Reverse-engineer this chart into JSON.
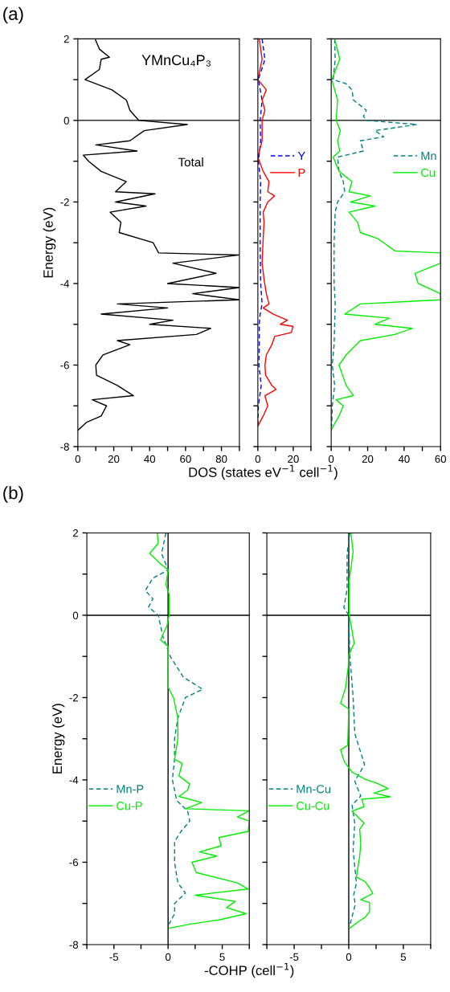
{
  "chart_data": [
    {
      "type": "line",
      "ylabel": "Energy (eV)",
      "xlim": [
        0,
        90
      ],
      "ylim": [
        -8,
        2
      ],
      "xticks": [
        0,
        {
          "value": 10,
          "label": null
        },
        20,
        {
          "value": 30,
          "label": null
        },
        40,
        {
          "value": 50,
          "label": null
        },
        60,
        {
          "value": 70,
          "label": null
        },
        80,
        {
          "value": 90,
          "label": null
        }
      ],
      "yticks": [
        -8,
        {
          "value": -7,
          "label": null
        },
        -6,
        {
          "value": -5,
          "label": null
        },
        -4,
        {
          "value": -3,
          "label": null
        },
        -2,
        {
          "value": -1,
          "label": null
        },
        0,
        {
          "value": 1,
          "label": null
        },
        2
      ],
      "annotations": [
        "(a)",
        "YMnCu₄P₃",
        "Total"
      ],
      "ref_lines": [
        {
          "axis": "y",
          "value": 0,
          "color": "#000000"
        }
      ],
      "series": [
        {
          "color": "#000000",
          "line_style": "solid",
          "x": [
            9.6,
            12,
            17.6,
            13,
            12,
            4,
            19,
            27,
            29,
            34,
            61,
            37,
            29,
            10,
            33,
            3,
            6,
            13,
            27,
            21,
            43,
            21,
            38,
            18,
            24,
            23,
            42,
            45,
            90,
            53,
            77,
            50,
            90,
            64,
            90,
            22,
            50,
            13,
            53,
            40,
            74,
            66,
            22,
            29,
            14,
            10,
            10.4,
            22,
            31,
            8,
            16,
            13,
            5,
            0
          ],
          "values": [
            2,
            1.75,
            1.55,
            1.5,
            1.25,
            1.0,
            0.75,
            0.5,
            0.25,
            0,
            -0.1,
            -0.25,
            -0.5,
            -0.6,
            -0.75,
            -0.85,
            -1.0,
            -1.25,
            -1.5,
            -1.75,
            -1.8,
            -2.0,
            -2.1,
            -2.25,
            -2.5,
            -2.75,
            -3.0,
            -3.25,
            -3.3,
            -3.5,
            -3.75,
            -4.0,
            -4.1,
            -4.25,
            -4.4,
            -4.5,
            -4.6,
            -4.75,
            -4.9,
            -5.0,
            -5.1,
            -5.25,
            -5.4,
            -5.5,
            -5.75,
            -6.0,
            -6.25,
            -6.5,
            -6.75,
            -6.85,
            -7.0,
            -7.25,
            -7.4,
            -7.6
          ]
        }
      ]
    },
    {
      "type": "line",
      "xlabel": "DOS (states eV$^{−1}$ cell$^{−1}$)",
      "xlim": [
        0,
        30
      ],
      "ylim": [
        -8,
        2
      ],
      "xticks": [
        0,
        {
          "value": 10,
          "label": null
        },
        20,
        {
          "value": 30,
          "label": null
        }
      ],
      "yticks": [
        -8,
        {
          "value": -7,
          "label": null
        },
        -6,
        {
          "value": -5,
          "label": null
        },
        -4,
        {
          "value": -3,
          "label": null
        },
        -2,
        {
          "value": -1,
          "label": null
        },
        0,
        {
          "value": 1,
          "label": null
        },
        2
      ],
      "tick_labels": "x",
      "legend": "right",
      "ref_lines": [
        {
          "axis": "y",
          "value": 0,
          "color": "#000000"
        }
      ],
      "series": [
        {
          "name": "Y",
          "color": "#0000ff",
          "line_style": "dashed",
          "x": [
            2.4,
            4,
            0.3,
            2.4,
            1.3,
            1.6,
            0.3,
            1.6,
            1.3,
            1.3,
            1.6,
            2.4,
            1.3,
            0.8,
            0.8,
            0.6,
            1.9,
            0.3,
            0
          ],
          "values": [
            2,
            1.5,
            1.0,
            0.5,
            0,
            -0.5,
            -1.0,
            -1.5,
            -2.0,
            -3.0,
            -4.0,
            -4.5,
            -4.75,
            -5.0,
            -5.5,
            -6.0,
            -6.5,
            -7.0,
            -7.5
          ]
        },
        {
          "name": "P",
          "color": "#ff0000",
          "line_style": "solid",
          "x": [
            0.8,
            2.4,
            0,
            4.8,
            2.4,
            4,
            2.4,
            2.4,
            0,
            3,
            6.3,
            5.6,
            9.5,
            5.6,
            3,
            3.5,
            2.9,
            2.4,
            3.5,
            4.8,
            6.3,
            3,
            8.7,
            16.7,
            12.7,
            19.8,
            19,
            9.5,
            7.9,
            4.8,
            4,
            4.4,
            7.9,
            10.3,
            4,
            5.6,
            3,
            0
          ],
          "values": [
            2,
            1.5,
            1.0,
            0.75,
            0.5,
            0.25,
            0,
            -0.5,
            -0.9,
            -1.25,
            -1.5,
            -1.75,
            -1.85,
            -2.0,
            -2.25,
            -2.5,
            -3.0,
            -3.5,
            -3.9,
            -4.25,
            -4.5,
            -4.6,
            -4.75,
            -4.9,
            -5.0,
            -5.05,
            -5.2,
            -5.3,
            -5.5,
            -5.75,
            -6.0,
            -6.25,
            -6.5,
            -6.6,
            -6.75,
            -7.0,
            -7.25,
            -7.5
          ]
        }
      ]
    },
    {
      "type": "line",
      "xlim": [
        0,
        60
      ],
      "ylim": [
        -8,
        2
      ],
      "xticks": [
        0,
        {
          "value": 10,
          "label": null
        },
        20,
        {
          "value": 30,
          "label": null
        },
        40,
        {
          "value": 50,
          "label": null
        },
        60
      ],
      "yticks": [
        -8,
        {
          "value": -7,
          "label": null
        },
        -6,
        {
          "value": -5,
          "label": null
        },
        -4,
        {
          "value": -3,
          "label": null
        },
        -2,
        {
          "value": -1,
          "label": null
        },
        0,
        {
          "value": 1,
          "label": null
        },
        2
      ],
      "tick_labels": "x",
      "legend": "right",
      "ref_lines": [
        {
          "axis": "y",
          "value": 0,
          "color": "#000000"
        }
      ],
      "series": [
        {
          "name": "Mn",
          "color": "#008080",
          "line_style": "dashed",
          "x": [
            1.9,
            2.2,
            1.1,
            8.2,
            11.4,
            12.2,
            19.3,
            17.7,
            19.3,
            47,
            24,
            28.8,
            16,
            17.7,
            3.5,
            4.3,
            6.6,
            7.4,
            3.5,
            2.2,
            1.6,
            1.6,
            2.2,
            1.9,
            1.6,
            0.6,
            1.9,
            0.6,
            0.3
          ],
          "values": [
            2,
            1.5,
            1.0,
            0.9,
            0.75,
            0.5,
            0.25,
            0.1,
            0,
            -0.1,
            -0.25,
            -0.4,
            -0.5,
            -0.75,
            -0.9,
            -1.25,
            -1.5,
            -1.75,
            -2.0,
            -2.25,
            -3.0,
            -4.0,
            -4.5,
            -5.0,
            -5.5,
            -6.0,
            -6.5,
            -7.0,
            -7.5
          ]
        },
        {
          "name": "Cu",
          "color": "#00ee00",
          "line_style": "solid",
          "x": [
            1.9,
            4.7,
            0.3,
            3.5,
            2.7,
            5,
            3.5,
            4.7,
            1.1,
            4.3,
            11.4,
            9.8,
            21.6,
            10.6,
            24,
            9.8,
            14.5,
            16,
            25.6,
            28.8,
            35,
            60,
            60,
            46,
            47.7,
            60,
            60,
            16,
            7.4,
            32,
            24,
            44.5,
            35,
            16,
            8.2,
            4.3,
            8.2,
            12.2,
            2.7,
            6.6,
            4.3,
            1.1,
            0
          ],
          "values": [
            2,
            1.5,
            1.0,
            0.5,
            0,
            -0.25,
            -0.5,
            -0.75,
            -0.9,
            -1.25,
            -1.5,
            -1.75,
            -1.85,
            -2.0,
            -2.1,
            -2.25,
            -2.5,
            -2.75,
            -2.9,
            -3.0,
            -3.2,
            -3.25,
            -3.5,
            -3.75,
            -4.0,
            -4.25,
            -4.4,
            -4.5,
            -4.75,
            -4.85,
            -5.0,
            -5.1,
            -5.25,
            -5.4,
            -5.75,
            -6.0,
            -6.5,
            -6.75,
            -6.85,
            -7.0,
            -7.25,
            -7.5,
            -7.6
          ]
        }
      ]
    },
    {
      "type": "line",
      "ylabel": "Energy (eV)",
      "xlabel": "-COHP (cell$^{−1}$)",
      "xlim": [
        -7.5,
        7.5
      ],
      "ylim": [
        -8,
        2
      ],
      "xticks": [
        {
          "value": -7.5,
          "label": null
        },
        -5,
        {
          "value": -2.5,
          "label": null
        },
        0,
        {
          "value": 2.5,
          "label": null
        },
        5,
        {
          "value": 7.5,
          "label": null
        }
      ],
      "yticks": [
        -8,
        {
          "value": -7,
          "label": null
        },
        -6,
        {
          "value": -5,
          "label": null
        },
        -4,
        {
          "value": -3,
          "label": null
        },
        -2,
        {
          "value": -1,
          "label": null
        },
        0,
        {
          "value": 1,
          "label": null
        },
        2
      ],
      "legend": "left",
      "annotations": [
        "(b)"
      ],
      "ref_lines": [
        {
          "axis": "y",
          "value": 0,
          "color": "#000000"
        },
        {
          "axis": "x",
          "value": 0,
          "color": "#000000"
        }
      ],
      "series": [
        {
          "name": "Mn-P",
          "color": "#008080",
          "line_style": "dashed",
          "x": [
            -0.2,
            -0.6,
            0,
            -1.4,
            -2.1,
            -1.4,
            -1.8,
            -0.9,
            -0.5,
            0.2,
            1.4,
            3.2,
            1.6,
            0.9,
            0.6,
            0.6,
            0.4,
            0.8,
            1.8,
            2.0,
            1.2,
            0.6,
            0.6,
            0.9,
            1.6,
            0.6,
            0.6,
            0.1
          ],
          "values": [
            2,
            1.5,
            1.1,
            0.9,
            0.6,
            0.4,
            0.2,
            0,
            -0.5,
            -1.0,
            -1.5,
            -1.8,
            -2.0,
            -2.5,
            -3.0,
            -3.5,
            -4.0,
            -4.5,
            -4.75,
            -5.0,
            -5.25,
            -5.5,
            -6.0,
            -6.5,
            -6.75,
            -7.0,
            -7.25,
            -7.5
          ]
        },
        {
          "name": "Cu-P",
          "color": "#00ee00",
          "line_style": "solid",
          "x": [
            -1.0,
            -0.9,
            -1.7,
            -0.7,
            0,
            -0.05,
            -0.2,
            0.1,
            0.1,
            -0.1,
            -0.7,
            0,
            0,
            0,
            0.5,
            0.9,
            0.9,
            0.6,
            1.3,
            1.0,
            2.0,
            1.8,
            1.0,
            3.1,
            1.6,
            7.5,
            6.4,
            7.5,
            7.4,
            4.7,
            4.9,
            2.9,
            4.5,
            2.2,
            2.6,
            6.4,
            7.4,
            2.5,
            6.2,
            5.4,
            7.2,
            4.7,
            2.1,
            0.1
          ],
          "values": [
            2,
            1.75,
            1.5,
            1.25,
            1.1,
            1.0,
            0.75,
            0.5,
            0,
            -0.25,
            -0.6,
            -0.75,
            -1.0,
            -1.75,
            -2.0,
            -2.5,
            -3.0,
            -3.5,
            -3.6,
            -3.9,
            -4.1,
            -4.25,
            -4.4,
            -4.55,
            -4.7,
            -4.75,
            -4.9,
            -5.0,
            -5.25,
            -5.4,
            -5.6,
            -5.75,
            -5.85,
            -6.0,
            -6.25,
            -6.5,
            -6.65,
            -6.8,
            -6.95,
            -7.1,
            -7.25,
            -7.4,
            -7.5,
            -7.6
          ]
        }
      ]
    },
    {
      "type": "line",
      "xlim": [
        -7.5,
        7.5
      ],
      "ylim": [
        -8,
        2
      ],
      "xticks": [
        {
          "value": -7.5,
          "label": null
        },
        -5,
        {
          "value": -2.5,
          "label": null
        },
        0,
        {
          "value": 2.5,
          "label": null
        },
        5,
        {
          "value": 7.5,
          "label": null
        }
      ],
      "yticks": [
        -8,
        {
          "value": -7,
          "label": null
        },
        -6,
        {
          "value": -5,
          "label": null
        },
        -4,
        {
          "value": -3,
          "label": null
        },
        -2,
        {
          "value": -1,
          "label": null
        },
        0,
        {
          "value": 1,
          "label": null
        },
        2
      ],
      "tick_labels": "x",
      "legend": "left",
      "ref_lines": [
        {
          "axis": "y",
          "value": 0,
          "color": "#000000"
        },
        {
          "axis": "x",
          "value": 0,
          "color": "#000000"
        }
      ],
      "series": [
        {
          "name": "Mn-Cu",
          "color": "#008080",
          "line_style": "dashed",
          "x": [
            0.1,
            -0.15,
            -0.15,
            -0.45,
            0,
            0.1,
            0.4,
            0.55,
            1.45,
            0.55,
            1.1,
            0.3,
            0.55,
            0.4,
            0.7,
            0.45,
            0.6,
            0.1
          ],
          "values": [
            2,
            1.5,
            0.63,
            0.19,
            0,
            -0.97,
            -1.99,
            -2.87,
            -3.63,
            -4.03,
            -4.39,
            -4.61,
            -5.05,
            -5.7,
            -6.51,
            -6.8,
            -7.02,
            -7.53
          ]
        },
        {
          "name": "Cu-Cu",
          "color": "#00ee00",
          "line_style": "solid",
          "x": [
            0.2,
            0.4,
            0.05,
            0.05,
            0.5,
            0,
            -0.05,
            -0.3,
            -0.75,
            0,
            -0.1,
            -0.75,
            -0.4,
            0.3,
            1.6,
            2.5,
            3.6,
            2.3,
            3.8,
            1.2,
            1.4,
            0.3,
            1.4,
            1.0,
            1.1,
            1.0,
            0.7,
            1.5,
            1.9,
            2.2,
            1.1,
            1.9,
            1.9,
            1.5,
            1.0,
            0.1
          ],
          "values": [
            2,
            1.54,
            0.85,
            0,
            -0.68,
            -0.97,
            -1.26,
            -1.77,
            -2.14,
            -2.28,
            -3.16,
            -3.27,
            -3.56,
            -3.81,
            -4.0,
            -4.07,
            -4.21,
            -4.32,
            -4.41,
            -4.47,
            -4.65,
            -4.76,
            -5.05,
            -5.2,
            -5.56,
            -5.85,
            -6.36,
            -6.47,
            -6.62,
            -6.76,
            -6.91,
            -6.98,
            -7.2,
            -7.34,
            -7.42,
            -7.6
          ]
        }
      ]
    }
  ]
}
